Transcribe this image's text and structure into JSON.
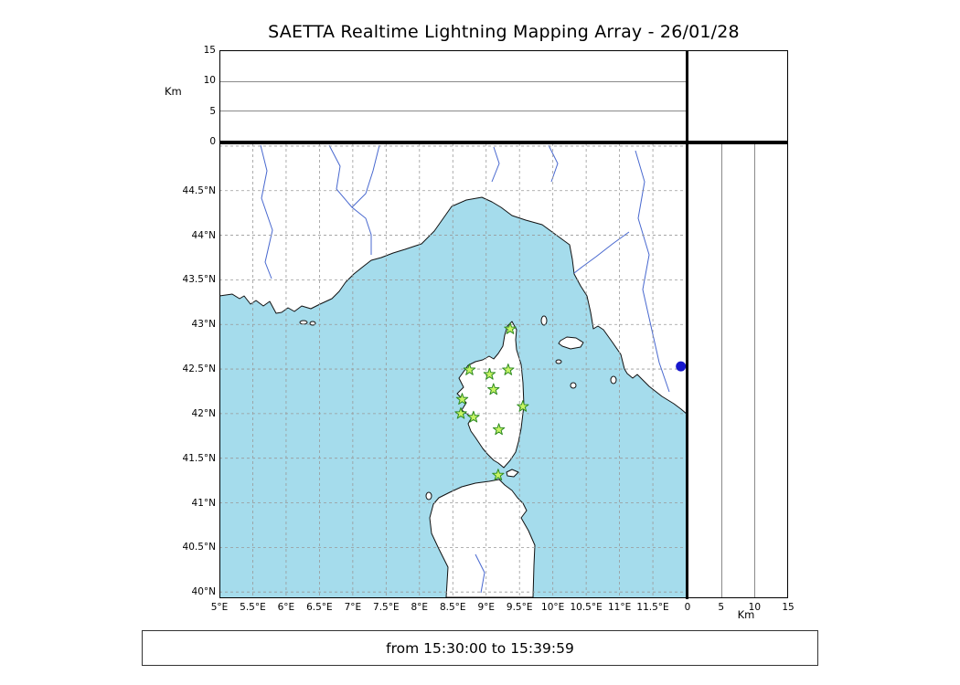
{
  "title": "SAETTA Realtime Lightning Mapping Array - 26/01/28",
  "status_bar": {
    "text": "from 15:30:00 to 15:39:59"
  },
  "axes": {
    "altitude_left": {
      "unit_label": "Km",
      "tick_values": [
        0,
        5,
        10,
        15
      ],
      "tick_labels": [
        "0",
        "5",
        "10",
        "15"
      ],
      "range": [
        0,
        15
      ],
      "gridline_values": [
        5,
        10
      ]
    },
    "altitude_bottom": {
      "unit_label": "Km",
      "tick_values": [
        0,
        5,
        10,
        15
      ],
      "tick_labels": [
        "0",
        "5",
        "10",
        "15"
      ],
      "range": [
        0,
        15
      ],
      "gridline_values": [
        5,
        10
      ]
    },
    "longitude": {
      "tick_values": [
        5,
        5.5,
        6,
        6.5,
        7,
        7.5,
        8,
        8.5,
        9,
        9.5,
        10,
        10.5,
        11,
        11.5
      ],
      "tick_labels": [
        "5°E",
        "5.5°E",
        "6°E",
        "6.5°E",
        "7°E",
        "7.5°E",
        "8°E",
        "8.5°E",
        "9°E",
        "9.5°E",
        "10°E",
        "10.5°E",
        "11°E",
        "11.5°E"
      ]
    },
    "latitude": {
      "tick_values": [
        40,
        40.5,
        41,
        41.5,
        42,
        42.5,
        43,
        43.5,
        44,
        44.5
      ],
      "tick_labels": [
        "40°N",
        "40.5°N",
        "41°N",
        "41.5°N",
        "42°N",
        "42.5°N",
        "43°N",
        "43.5°N",
        "44°N",
        "44.5°N"
      ]
    }
  },
  "chart_data": {
    "type": "scatter",
    "title": "SAETTA Realtime Lightning Mapping Array - 26/01/28",
    "time_window": "from 15:30:00 to 15:39:59",
    "map_extent": {
      "lon": [
        5.0,
        12.02
      ],
      "lat": [
        39.93,
        45.03
      ]
    },
    "grid_step_deg": 0.5,
    "altitude_range_km": [
      0,
      15
    ],
    "stations": [
      {
        "lon": 9.36,
        "lat": 42.95
      },
      {
        "lon": 8.75,
        "lat": 42.49
      },
      {
        "lon": 9.05,
        "lat": 42.44
      },
      {
        "lon": 9.33,
        "lat": 42.49
      },
      {
        "lon": 9.11,
        "lat": 42.27
      },
      {
        "lon": 8.64,
        "lat": 42.16
      },
      {
        "lon": 9.55,
        "lat": 42.08
      },
      {
        "lon": 8.62,
        "lat": 42.0
      },
      {
        "lon": 8.81,
        "lat": 41.96
      },
      {
        "lon": 9.19,
        "lat": 41.82
      },
      {
        "lon": 9.18,
        "lat": 41.31
      }
    ],
    "station_marker": {
      "shape": "star",
      "fill": "#c7f464",
      "stroke": "#2e8b22"
    },
    "event_point": {
      "lon": 11.92,
      "lat": 42.53,
      "color": "#1717cd"
    },
    "colors": {
      "sea": "#a5dcec",
      "land": "#ffffff",
      "coast": "#111111",
      "river": "#4868cf",
      "grid": "#999999"
    }
  }
}
